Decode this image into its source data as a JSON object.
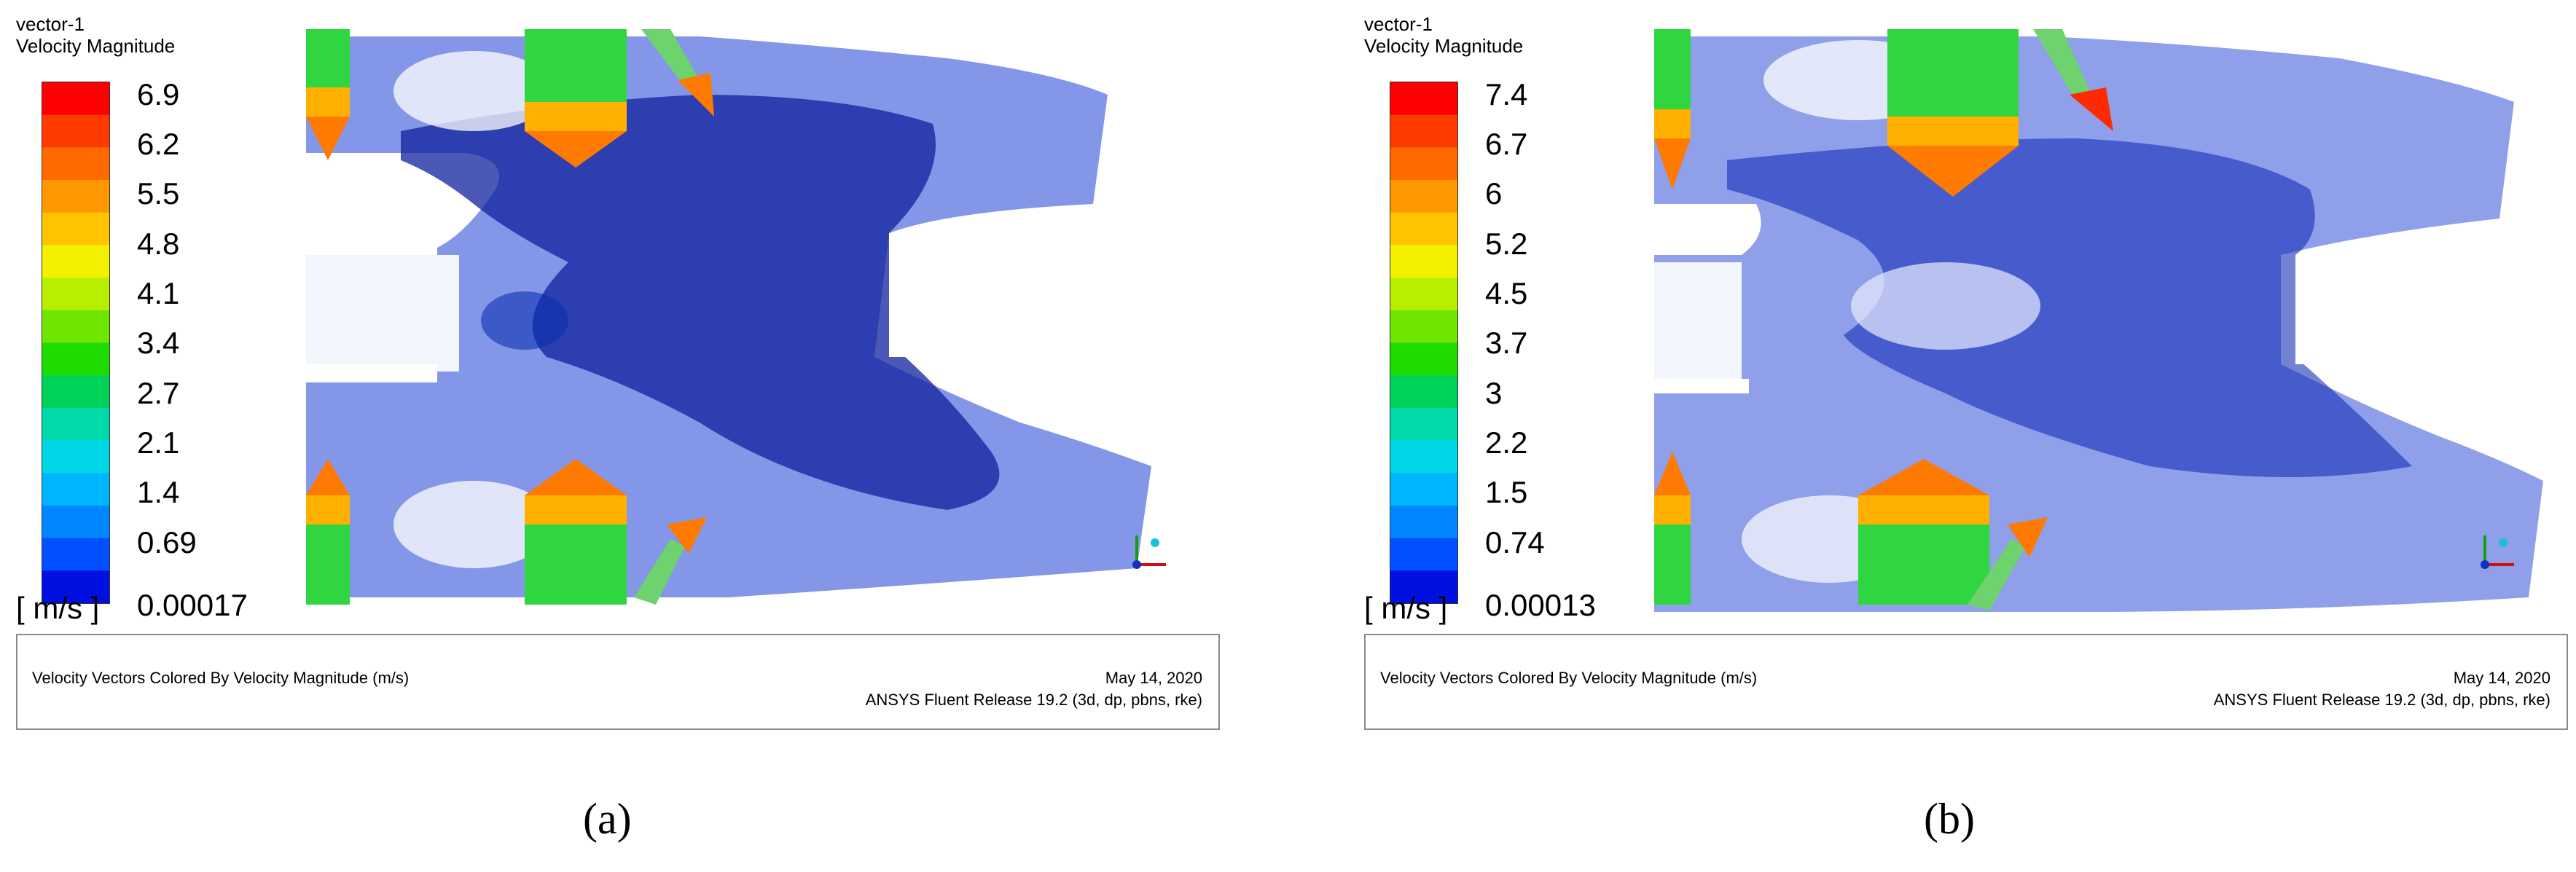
{
  "panels": [
    {
      "id": "a",
      "title_line1": "vector-1",
      "title_line2": "Velocity Magnitude",
      "ticks": [
        "6.9",
        "6.2",
        "5.5",
        "4.8",
        "4.1",
        "3.4",
        "2.7",
        "2.1",
        "1.4",
        "0.69",
        "0.00017"
      ],
      "unit": "[ m/s ]",
      "footer_left": "Velocity Vectors Colored By Velocity Magnitude (m/s)",
      "footer_date": "May 14, 2020",
      "footer_release": "ANSYS Fluent Release 19.2 (3d, dp, pbns, rke)",
      "sub_label": "(a)"
    },
    {
      "id": "b",
      "title_line1": "vector-1",
      "title_line2": "Velocity Magnitude",
      "ticks": [
        "7.4",
        "6.7",
        "6",
        "5.2",
        "4.5",
        "3.7",
        "3",
        "2.2",
        "1.5",
        "0.74",
        "0.00013"
      ],
      "unit": "[ m/s ]",
      "footer_left": "Velocity Vectors Colored By Velocity Magnitude (m/s)",
      "footer_date": "May 14, 2020",
      "footer_release": "ANSYS Fluent Release 19.2 (3d, dp, pbns, rke)",
      "sub_label": "(b)"
    }
  ],
  "colormap": [
    "#ff0000",
    "#ff3a00",
    "#ff6a00",
    "#ff9800",
    "#ffc400",
    "#f3f000",
    "#b8ef00",
    "#6ee600",
    "#1fdc00",
    "#00d25a",
    "#00d9a8",
    "#00d7e6",
    "#00b5ff",
    "#0086ff",
    "#0050ff",
    "#0010e0"
  ]
}
